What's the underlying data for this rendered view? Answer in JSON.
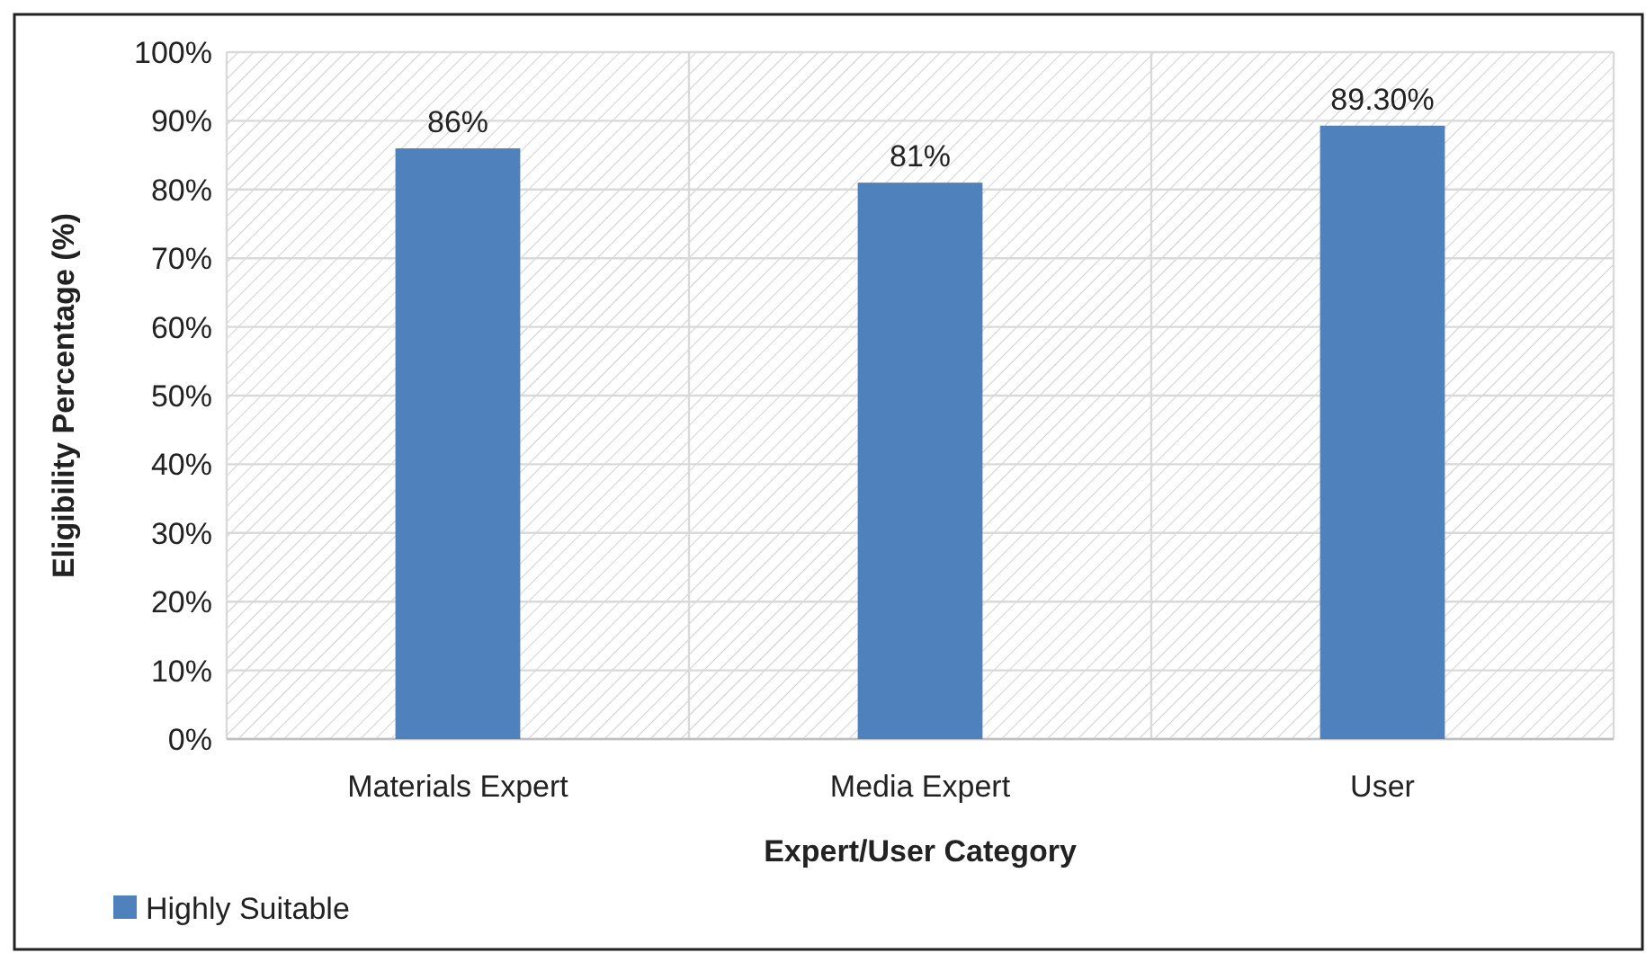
{
  "chart_data": {
    "type": "bar",
    "xlabel": "Expert/User Category",
    "ylabel": "Eligibility Percentage (%)",
    "categories": [
      "Materials Expert",
      "Media Expert",
      "User"
    ],
    "series": [
      {
        "name": "Highly Suitable",
        "color": "#4f81bd",
        "values": [
          86,
          81,
          89.3
        ],
        "value_labels": [
          "86%",
          "81%",
          "89.30%"
        ]
      }
    ],
    "ylim": [
      0,
      100
    ],
    "yticks": [
      {
        "value": 0,
        "label": "0%"
      },
      {
        "value": 10,
        "label": "10%"
      },
      {
        "value": 20,
        "label": "20%"
      },
      {
        "value": 30,
        "label": "30%"
      },
      {
        "value": 40,
        "label": "40%"
      },
      {
        "value": 50,
        "label": "50%"
      },
      {
        "value": 60,
        "label": "60%"
      },
      {
        "value": 70,
        "label": "70%"
      },
      {
        "value": 80,
        "label": "80%"
      },
      {
        "value": 90,
        "label": "90%"
      },
      {
        "value": 100,
        "label": "100%"
      }
    ],
    "grid": true,
    "legend": "bottom left"
  }
}
